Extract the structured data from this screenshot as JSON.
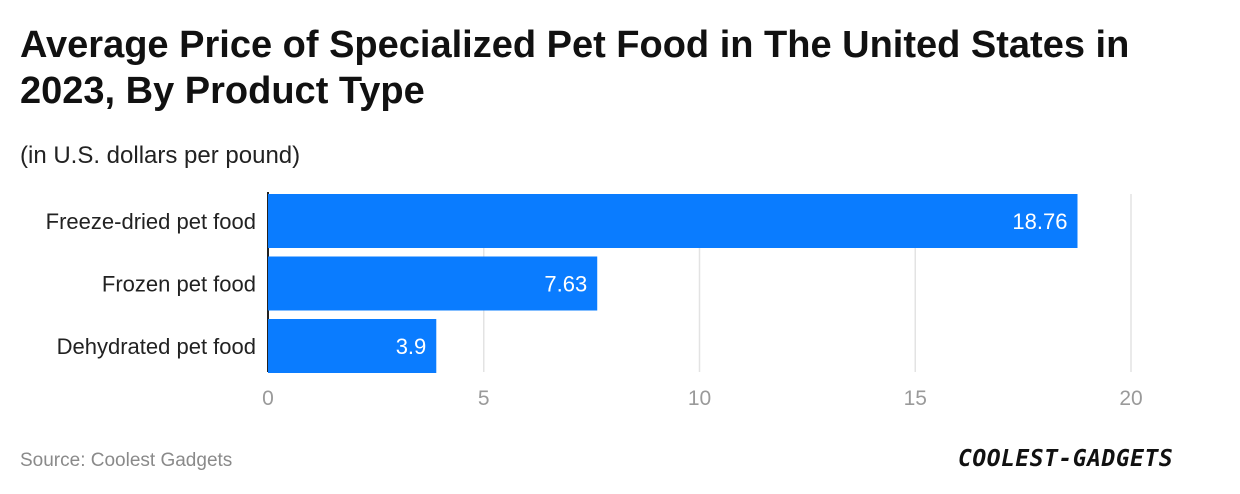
{
  "chart_data": {
    "type": "bar",
    "orientation": "horizontal",
    "title": "Average Price of Specialized Pet Food in The United States in 2023, By Product Type",
    "subtitle": "(in U.S. dollars per pound)",
    "categories": [
      "Freeze-dried pet food",
      "Frozen pet food",
      "Dehydrated pet food"
    ],
    "values": [
      18.76,
      7.63,
      3.9
    ],
    "value_labels": [
      "18.76",
      "7.63",
      "3.9"
    ],
    "xlim": [
      0,
      20
    ],
    "xticks": [
      0,
      5,
      10,
      15,
      20
    ],
    "xlabel": "",
    "ylabel": "",
    "grid": true,
    "bar_color": "#0a7cff"
  },
  "footer": {
    "source": "Source: Coolest Gadgets",
    "logo_text": "COOLEST-GADGETS"
  },
  "colors": {
    "bar": "#0a7cff",
    "grid": "#e3e3e3",
    "tick_text": "#9a9a9a",
    "axis": "#222222"
  }
}
